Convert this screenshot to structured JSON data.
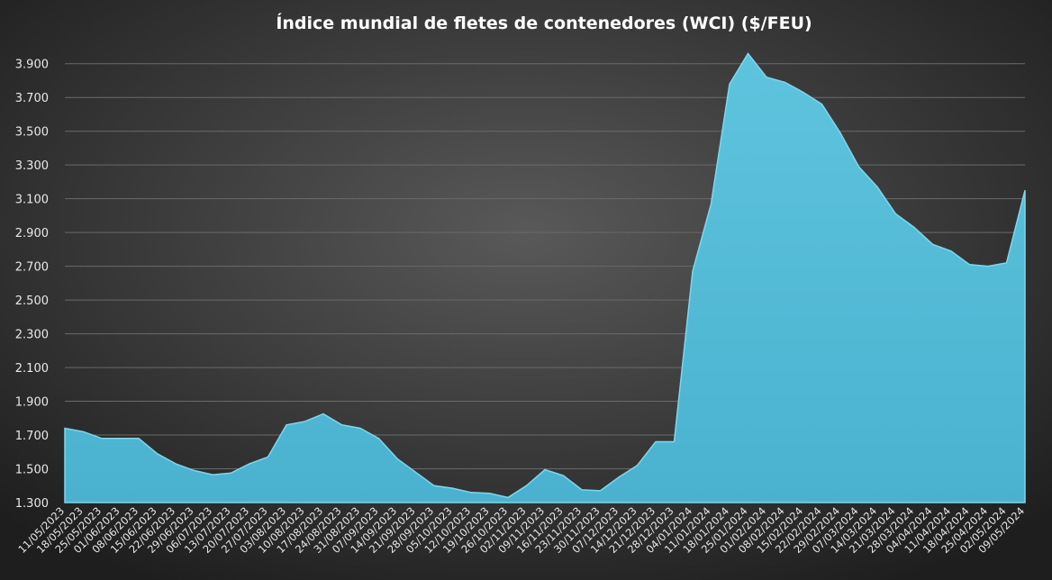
{
  "chart_data": {
    "type": "area",
    "title": "Índice mundial de fletes de contenedores (WCI) ($/FEU)",
    "categories": [
      "11/05/2023",
      "18/05/2023",
      "25/05/2023",
      "01/06/2023",
      "08/06/2023",
      "15/06/2023",
      "22/06/2023",
      "29/06/2023",
      "06/07/2023",
      "13/07/2023",
      "20/07/2023",
      "27/07/2023",
      "03/08/2023",
      "10/08/2023",
      "17/08/2023",
      "24/08/2023",
      "31/08/2023",
      "07/09/2023",
      "14/09/2023",
      "21/09/2023",
      "28/09/2023",
      "05/10/2023",
      "12/10/2023",
      "19/10/2023",
      "26/10/2023",
      "02/11/2023",
      "09/11/2023",
      "16/11/2023",
      "23/11/2023",
      "30/11/2023",
      "07/12/2023",
      "14/12/2023",
      "21/12/2023",
      "28/12/2023",
      "04/01/2024",
      "11/01/2024",
      "18/01/2024",
      "25/01/2024",
      "01/02/2024",
      "08/02/2024",
      "15/02/2024",
      "22/02/2024",
      "29/02/2024",
      "07/03/2024",
      "14/03/2024",
      "21/03/2024",
      "28/03/2024",
      "04/04/2024",
      "11/04/2024",
      "18/04/2024",
      "25/04/2024",
      "02/05/2024",
      "09/05/2024"
    ],
    "values": [
      1740,
      1720,
      1680,
      1680,
      1680,
      1590,
      1530,
      1490,
      1465,
      1475,
      1530,
      1570,
      1760,
      1780,
      1825,
      1760,
      1740,
      1680,
      1560,
      1480,
      1400,
      1385,
      1360,
      1355,
      1330,
      1400,
      1495,
      1460,
      1375,
      1370,
      1450,
      1520,
      1660,
      1660,
      2670,
      3070,
      3780,
      3960,
      3820,
      3790,
      3730,
      3660,
      3490,
      3290,
      3170,
      3010,
      2930,
      2830,
      2790,
      2710,
      2700,
      2720,
      3150
    ],
    "color": "#55bcd8",
    "ylim": [
      1300,
      4000
    ],
    "yticks": [
      {
        "value": 1300,
        "label": "1.300"
      },
      {
        "value": 1500,
        "label": "1.500"
      },
      {
        "value": 1700,
        "label": "1.700"
      },
      {
        "value": 1900,
        "label": "1.900"
      },
      {
        "value": 2100,
        "label": "2.100"
      },
      {
        "value": 2300,
        "label": "2.300"
      },
      {
        "value": 2500,
        "label": "2.500"
      },
      {
        "value": 2700,
        "label": "2.700"
      },
      {
        "value": 2900,
        "label": "2.900"
      },
      {
        "value": 3100,
        "label": "3.100"
      },
      {
        "value": 3300,
        "label": "3.300"
      },
      {
        "value": 3500,
        "label": "3.500"
      },
      {
        "value": 3700,
        "label": "3.700"
      },
      {
        "value": 3900,
        "label": "3.900"
      }
    ],
    "grid": true
  }
}
